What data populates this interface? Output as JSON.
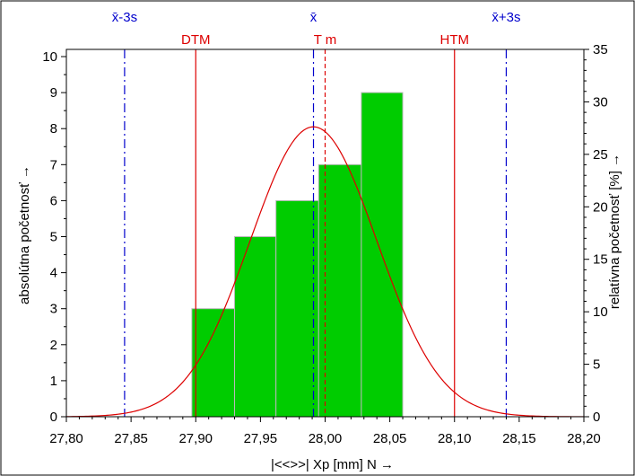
{
  "chart_data": {
    "type": "bar",
    "bins": [
      {
        "from": 27.897,
        "to": 27.93,
        "count": 3
      },
      {
        "from": 27.93,
        "to": 27.962,
        "count": 5
      },
      {
        "from": 27.962,
        "to": 27.995,
        "count": 6
      },
      {
        "from": 27.995,
        "to": 28.028,
        "count": 7
      },
      {
        "from": 28.028,
        "to": 28.06,
        "count": 9
      }
    ],
    "x_ticks": [
      "27,80",
      "27,85",
      "27,90",
      "27,95",
      "28,00",
      "28,05",
      "28,10",
      "28,15",
      "28,20"
    ],
    "x_tick_values": [
      27.8,
      27.85,
      27.9,
      27.95,
      28.0,
      28.05,
      28.1,
      28.15,
      28.2
    ],
    "y_left_ticks": [
      "0",
      "1",
      "2",
      "3",
      "4",
      "5",
      "6",
      "7",
      "8",
      "9",
      "10"
    ],
    "y_right_ticks": [
      "0",
      "5",
      "10",
      "15",
      "20",
      "25",
      "30",
      "35"
    ],
    "xlim": [
      27.8,
      28.2
    ],
    "ylim_left": [
      0,
      10.2
    ],
    "ylim_right": [
      0,
      35
    ],
    "xlabel": "|<<>>|  Xp [mm]  N →",
    "ylabel_left": "absolútna početnosť →",
    "ylabel_right": "relatívna početnosť  [%] →",
    "normal_curve": {
      "mean": 27.991,
      "sigma": 0.049,
      "peak_count": 8.05
    },
    "ref_lines": [
      {
        "id": "xbar-3s",
        "value": 27.845,
        "label": "x̄-3s",
        "color": "#0000cc",
        "style": "dashdot"
      },
      {
        "id": "dtm",
        "value": 27.9,
        "label": "DTM",
        "color": "#dd0000",
        "style": "solid"
      },
      {
        "id": "xbar",
        "value": 27.991,
        "label": "x̄",
        "color": "#0000cc",
        "style": "dashdot"
      },
      {
        "id": "tm",
        "value": 28.0,
        "label": "T m",
        "color": "#dd0000",
        "style": "dashed"
      },
      {
        "id": "htm",
        "value": 28.1,
        "label": "HTM",
        "color": "#dd0000",
        "style": "solid"
      },
      {
        "id": "xbar+3s",
        "value": 28.14,
        "label": "x̄+3s",
        "color": "#0000cc",
        "style": "dashdot"
      }
    ],
    "colors": {
      "bar": "#00cc00",
      "bar_stroke": "#b8b8b8",
      "curve": "#dd0000"
    }
  }
}
